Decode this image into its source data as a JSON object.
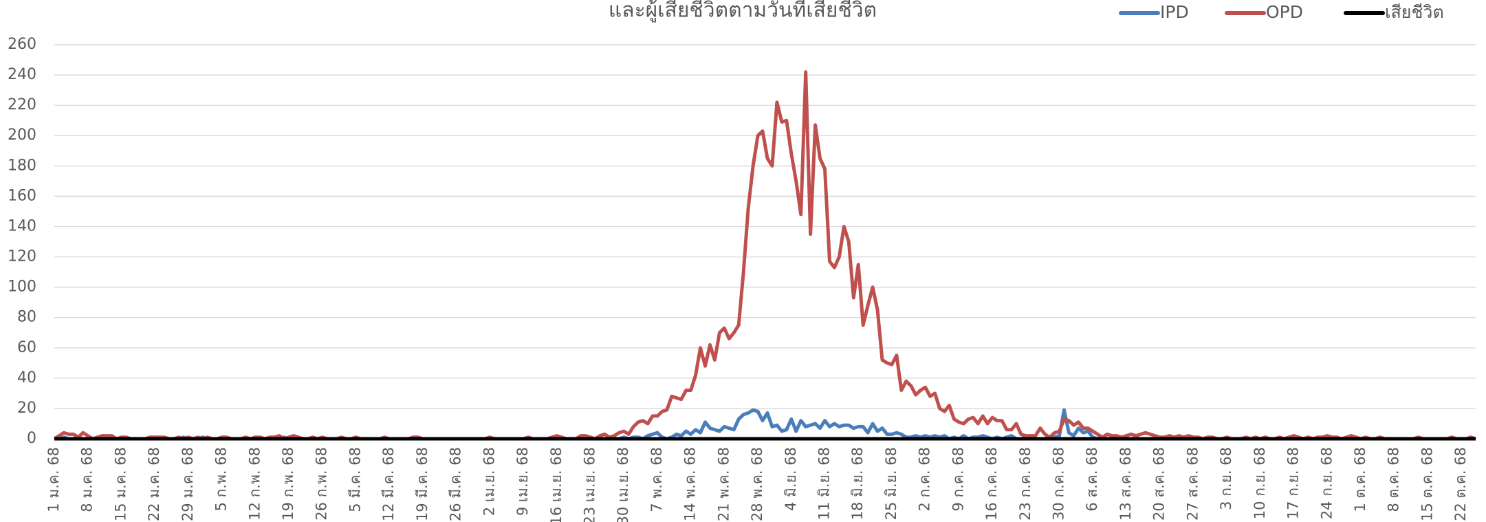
{
  "chart_data": {
    "type": "line",
    "title": "และผู้เสียชีวิตตามวันที่เสียชีวิต",
    "categories": [
      "1 ม.ค. 68",
      null,
      null,
      null,
      null,
      null,
      null,
      "8 ม.ค. 68",
      null,
      null,
      null,
      null,
      null,
      null,
      "15 ม.ค. 68",
      null,
      null,
      null,
      null,
      null,
      null,
      "22 ม.ค. 68",
      null,
      null,
      null,
      null,
      null,
      null,
      "29 ม.ค. 68",
      null,
      null,
      null,
      null,
      null,
      null,
      "5 ก.พ. 68",
      null,
      null,
      null,
      null,
      null,
      null,
      "12 ก.พ. 68",
      null,
      null,
      null,
      null,
      null,
      null,
      "19 ก.พ. 68",
      null,
      null,
      null,
      null,
      null,
      null,
      "26 ก.พ. 68",
      null,
      null,
      null,
      null,
      null,
      null,
      "5 มี.ค. 68",
      null,
      null,
      null,
      null,
      null,
      null,
      "12 มี.ค. 68",
      null,
      null,
      null,
      null,
      null,
      null,
      "19 มี.ค. 68",
      null,
      null,
      null,
      null,
      null,
      null,
      "26 มี.ค. 68",
      null,
      null,
      null,
      null,
      null,
      null,
      "2 เม.ย. 68",
      null,
      null,
      null,
      null,
      null,
      null,
      "9 เม.ย. 68",
      null,
      null,
      null,
      null,
      null,
      null,
      "16 เม.ย. 68",
      null,
      null,
      null,
      null,
      null,
      null,
      "23 เม.ย. 68",
      null,
      null,
      null,
      null,
      null,
      null,
      "30 เม.ย. 68",
      null,
      null,
      null,
      null,
      null,
      null,
      "7 พ.ค. 68",
      null,
      null,
      null,
      null,
      null,
      null,
      "14 พ.ค. 68",
      null,
      null,
      null,
      null,
      null,
      null,
      "21 พ.ค. 68",
      null,
      null,
      null,
      null,
      null,
      null,
      "28 พ.ค. 68",
      null,
      null,
      null,
      null,
      null,
      null,
      "4 มิ.ย. 68",
      null,
      null,
      null,
      null,
      null,
      null,
      "11 มิ.ย. 68",
      null,
      null,
      null,
      null,
      null,
      null,
      "18 มิ.ย. 68",
      null,
      null,
      null,
      null,
      null,
      null,
      "25 มิ.ย. 68",
      null,
      null,
      null,
      null,
      null,
      null,
      "2 ก.ค. 68",
      null,
      null,
      null,
      null,
      null,
      null,
      "9 ก.ค. 68",
      null,
      null,
      null,
      null,
      null,
      null,
      "16 ก.ค. 68",
      null,
      null,
      null,
      null,
      null,
      null,
      "23 ก.ค. 68",
      null,
      null,
      null,
      null,
      null,
      null,
      "30 ก.ค. 68",
      null,
      null,
      null,
      null,
      null,
      null,
      "6 ส.ค. 68",
      null,
      null,
      null,
      null,
      null,
      null,
      "13 ส.ค. 68",
      null,
      null,
      null,
      null,
      null,
      null,
      "20 ส.ค. 68",
      null,
      null,
      null,
      null,
      null,
      null,
      "27 ส.ค. 68",
      null,
      null,
      null,
      null,
      null,
      null,
      "3 ก.ย. 68",
      null,
      null,
      null,
      null,
      null,
      null,
      "10 ก.ย. 68",
      null,
      null,
      null,
      null,
      null,
      null,
      "17 ก.ย. 68",
      null,
      null,
      null,
      null,
      null,
      null,
      "24 ก.ย. 68",
      null,
      null,
      null,
      null,
      null,
      null,
      "1 ต.ค. 68",
      null,
      null,
      null,
      null,
      null,
      null,
      "8 ต.ค. 68",
      null,
      null,
      null,
      null,
      null,
      null,
      "15 ต.ค. 68",
      null,
      null,
      null,
      null,
      null,
      null,
      "22 ต.ค. 68",
      null,
      null,
      null
    ],
    "series": [
      {
        "name": "IPD",
        "color": "#4a7ebb",
        "values": [
          0,
          0,
          1,
          0,
          0,
          0,
          0,
          0,
          0,
          0,
          0,
          0,
          0,
          0,
          0,
          0,
          0,
          0,
          0,
          0,
          0,
          0,
          0,
          0,
          0,
          0,
          0,
          1,
          0,
          0,
          0,
          1,
          0,
          0,
          0,
          0,
          0,
          0,
          0,
          0,
          0,
          0,
          0,
          0,
          0,
          0,
          0,
          0,
          1,
          0,
          0,
          0,
          0,
          0,
          0,
          0,
          0,
          0,
          0,
          0,
          0,
          0,
          0,
          0,
          0,
          0,
          0,
          0,
          0,
          0,
          0,
          0,
          0,
          0,
          0,
          0,
          0,
          0,
          0,
          0,
          0,
          0,
          0,
          0,
          0,
          0,
          0,
          0,
          0,
          0,
          0,
          0,
          0,
          0,
          0,
          0,
          0,
          0,
          0,
          0,
          0,
          0,
          0,
          0,
          0,
          0,
          0,
          0,
          0,
          0,
          0,
          0,
          0,
          0,
          0,
          0,
          0,
          0,
          0,
          1,
          0,
          1,
          1,
          0,
          2,
          3,
          4,
          1,
          0,
          1,
          3,
          2,
          5,
          3,
          6,
          4,
          11,
          7,
          6,
          5,
          8,
          7,
          6,
          13,
          16,
          17,
          19,
          18,
          12,
          17,
          8,
          9,
          5,
          6,
          13,
          5,
          12,
          8,
          9,
          10,
          7,
          12,
          8,
          10,
          8,
          9,
          9,
          7,
          8,
          8,
          4,
          10,
          5,
          7,
          3,
          3,
          4,
          3,
          1,
          1,
          2,
          1,
          2,
          1,
          2,
          1,
          2,
          0,
          1,
          0,
          2,
          0,
          1,
          1,
          2,
          1,
          0,
          1,
          0,
          1,
          2,
          0,
          0,
          1,
          0,
          0,
          0,
          0,
          1,
          1,
          2,
          19,
          4,
          2,
          7,
          4,
          5,
          1,
          0,
          0,
          0,
          0,
          0,
          0,
          0,
          0,
          0,
          0,
          0,
          0,
          0,
          0,
          0,
          0,
          0,
          0,
          0,
          0,
          0,
          0,
          0,
          0,
          0,
          0,
          0,
          0,
          0,
          0,
          0,
          0,
          0,
          0,
          0,
          0,
          0,
          0,
          0,
          0,
          0,
          0,
          0,
          0,
          0,
          0,
          0,
          0,
          0,
          0,
          0,
          0,
          0,
          0,
          0,
          0,
          0,
          0,
          0,
          0,
          0,
          0,
          0,
          0,
          0,
          0,
          0,
          0,
          0,
          0,
          0,
          0,
          0,
          0,
          0,
          0,
          0,
          0,
          0,
          0
        ]
      },
      {
        "name": "OPD",
        "color": "#c0504d",
        "values": [
          0,
          2,
          4,
          3,
          3,
          1,
          4,
          2,
          0,
          1,
          2,
          2,
          2,
          0,
          1,
          1,
          0,
          0,
          0,
          0,
          1,
          1,
          1,
          1,
          0,
          0,
          1,
          0,
          1,
          0,
          1,
          0,
          1,
          0,
          0,
          1,
          1,
          0,
          0,
          0,
          1,
          0,
          1,
          1,
          0,
          1,
          1,
          2,
          0,
          1,
          2,
          1,
          0,
          0,
          1,
          0,
          1,
          0,
          0,
          0,
          1,
          0,
          0,
          1,
          0,
          0,
          0,
          0,
          0,
          1,
          0,
          0,
          0,
          0,
          0,
          1,
          1,
          0,
          0,
          0,
          0,
          0,
          0,
          0,
          0,
          0,
          0,
          0,
          0,
          0,
          0,
          1,
          0,
          0,
          0,
          0,
          0,
          0,
          0,
          1,
          0,
          0,
          0,
          0,
          1,
          2,
          1,
          0,
          0,
          0,
          2,
          2,
          1,
          0,
          2,
          3,
          1,
          2,
          4,
          5,
          3,
          8,
          11,
          12,
          10,
          15,
          15,
          18,
          19,
          28,
          27,
          26,
          32,
          32,
          42,
          60,
          48,
          62,
          52,
          70,
          73,
          66,
          70,
          75,
          110,
          152,
          180,
          200,
          203,
          185,
          180,
          222,
          209,
          210,
          188,
          170,
          148,
          242,
          135,
          207,
          185,
          178,
          117,
          113,
          120,
          140,
          130,
          93,
          115,
          75,
          88,
          100,
          85,
          52,
          50,
          49,
          55,
          32,
          38,
          35,
          29,
          32,
          34,
          28,
          30,
          20,
          18,
          22,
          13,
          11,
          10,
          13,
          14,
          10,
          15,
          10,
          14,
          12,
          12,
          6,
          6,
          10,
          3,
          2,
          2,
          2,
          7,
          3,
          1,
          4,
          5,
          13,
          12,
          9,
          11,
          7,
          7,
          5,
          3,
          1,
          3,
          2,
          2,
          1,
          2,
          3,
          2,
          3,
          4,
          3,
          2,
          1,
          1,
          2,
          1,
          2,
          1,
          2,
          1,
          1,
          0,
          1,
          1,
          0,
          0,
          1,
          0,
          0,
          0,
          1,
          0,
          1,
          0,
          1,
          0,
          0,
          1,
          0,
          1,
          2,
          1,
          0,
          1,
          0,
          1,
          1,
          2,
          1,
          1,
          0,
          1,
          2,
          1,
          0,
          1,
          0,
          0,
          1,
          0,
          0,
          0,
          0,
          0,
          0,
          0,
          1,
          0,
          0,
          0,
          0,
          0,
          0,
          1,
          0,
          0,
          0,
          1,
          0
        ]
      },
      {
        "name": "เสียชีวิต",
        "color": "#000000",
        "values": [
          0,
          0,
          0,
          0,
          0,
          0,
          0,
          0,
          0,
          0,
          0,
          0,
          0,
          0,
          0,
          0,
          0,
          0,
          0,
          0,
          0,
          0,
          0,
          0,
          0,
          0,
          0,
          0,
          0,
          0,
          0,
          0,
          0,
          0,
          0,
          0,
          0,
          0,
          0,
          0,
          0,
          0,
          0,
          0,
          0,
          0,
          0,
          0,
          0,
          0,
          0,
          0,
          0,
          0,
          0,
          0,
          0,
          0,
          0,
          0,
          0,
          0,
          0,
          0,
          0,
          0,
          0,
          0,
          0,
          0,
          0,
          0,
          0,
          0,
          0,
          0,
          0,
          0,
          0,
          0,
          0,
          0,
          0,
          0,
          0,
          0,
          0,
          0,
          0,
          0,
          0,
          0,
          0,
          0,
          0,
          0,
          0,
          0,
          0,
          0,
          0,
          0,
          0,
          0,
          0,
          0,
          0,
          0,
          0,
          0,
          0,
          0,
          0,
          0,
          0,
          0,
          0,
          0,
          0,
          0,
          0,
          0,
          0,
          0,
          0,
          0,
          0,
          0,
          0,
          0,
          0,
          0,
          0,
          0,
          0,
          0,
          0,
          0,
          0,
          0,
          0,
          0,
          0,
          0,
          0,
          0,
          0,
          0,
          0,
          0,
          0,
          0,
          0,
          0,
          0,
          0,
          0,
          0,
          0,
          0,
          0,
          0,
          0,
          0,
          0,
          0,
          0,
          0,
          0,
          0,
          0,
          0,
          0,
          0,
          0,
          0,
          0,
          0,
          0,
          0,
          0,
          0,
          0,
          0,
          0,
          0,
          0,
          0,
          0,
          0,
          0,
          0,
          0,
          0,
          0,
          0,
          0,
          0,
          0,
          0,
          0,
          0,
          0,
          0,
          0,
          0,
          0,
          0,
          0,
          0,
          0,
          0,
          0,
          0,
          0,
          0,
          0,
          0,
          0,
          0,
          0,
          0,
          0,
          0,
          0,
          0,
          0,
          0,
          0,
          0,
          0,
          0,
          0,
          0,
          0,
          0,
          0,
          0,
          0,
          0,
          0,
          0,
          0,
          0,
          0,
          0,
          0,
          0,
          0,
          0,
          0,
          0,
          0,
          0,
          0,
          0,
          0,
          0,
          0,
          0,
          0,
          0,
          0,
          0,
          0,
          0,
          0,
          0,
          0,
          0,
          0,
          0,
          0,
          0,
          0,
          0,
          0,
          0,
          0,
          0,
          0,
          0,
          0,
          0,
          0,
          0,
          0,
          0,
          0,
          0,
          0,
          0,
          0,
          0,
          0,
          0,
          0,
          0
        ]
      }
    ],
    "ylim": [
      0,
      260
    ],
    "yticks": [
      0,
      20,
      40,
      60,
      80,
      100,
      120,
      140,
      160,
      180,
      200,
      220,
      240,
      260
    ],
    "grid": true,
    "legend": "top-right"
  }
}
